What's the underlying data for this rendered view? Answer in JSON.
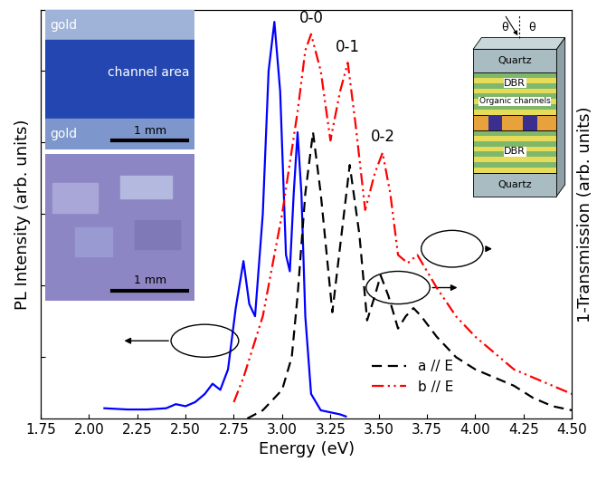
{
  "chart_data": {
    "type": "line",
    "xlabel": "Energy (eV)",
    "ylabel": "PL Intensity (arb. units)",
    "y2label": "1-Transmission (arb. units)",
    "xlim": [
      1.75,
      4.5
    ],
    "xticks": [
      1.75,
      {
        "value": 2.0,
        "label": "2.00"
      },
      2.25,
      {
        "value": 2.5,
        "label": "2.50"
      },
      2.75,
      {
        "value": 3.0,
        "label": "3.00"
      },
      3.25,
      {
        "value": 3.5,
        "label": "3.50"
      },
      3.75,
      {
        "value": 4.0,
        "label": "4.00"
      },
      4.25,
      {
        "value": 4.5,
        "label": "4.50"
      }
    ],
    "ylim": [
      0,
      1
    ],
    "yticks": [
      0.15,
      0.325,
      0.5,
      0.675,
      0.85
    ],
    "y2lim": [
      0,
      1
    ],
    "y2ticks": [],
    "tick_labels": "x",
    "legend": "lower right",
    "series": [
      {
        "color": "#0000ff",
        "line_style": "solid",
        "x": [
          2.08,
          2.2,
          2.3,
          2.4,
          2.45,
          2.5,
          2.55,
          2.6,
          2.64,
          2.68,
          2.72,
          2.76,
          2.8,
          2.83,
          2.86,
          2.9,
          2.93,
          2.96,
          2.99,
          3.02,
          3.04,
          3.06,
          3.08,
          3.1,
          3.12,
          3.15,
          3.2,
          3.3,
          3.33
        ],
        "values": [
          0.025,
          0.022,
          0.022,
          0.025,
          0.035,
          0.03,
          0.04,
          0.06,
          0.085,
          0.07,
          0.12,
          0.27,
          0.385,
          0.28,
          0.25,
          0.5,
          0.85,
          0.97,
          0.8,
          0.4,
          0.36,
          0.55,
          0.7,
          0.55,
          0.25,
          0.06,
          0.02,
          0.01,
          0.005
        ]
      },
      {
        "name": "a // E",
        "color": "#000000",
        "line_style": "dashed",
        "axis": "y2",
        "x": [
          2.82,
          2.9,
          3.0,
          3.05,
          3.08,
          3.12,
          3.16,
          3.2,
          3.26,
          3.3,
          3.35,
          3.4,
          3.44,
          3.48,
          3.51,
          3.55,
          3.6,
          3.64,
          3.68,
          3.72,
          3.8,
          3.9,
          4.0,
          4.1,
          4.2,
          4.3,
          4.4,
          4.5
        ],
        "values": [
          0.0,
          0.02,
          0.07,
          0.15,
          0.3,
          0.55,
          0.7,
          0.55,
          0.26,
          0.42,
          0.62,
          0.45,
          0.24,
          0.3,
          0.35,
          0.3,
          0.22,
          0.25,
          0.27,
          0.25,
          0.2,
          0.15,
          0.12,
          0.1,
          0.08,
          0.05,
          0.03,
          0.02
        ]
      },
      {
        "name": "b // E",
        "color": "#ff0000",
        "line_style": "dashdotdot",
        "axis": "y2",
        "x": [
          2.75,
          2.8,
          2.9,
          3.0,
          3.08,
          3.12,
          3.15,
          3.2,
          3.25,
          3.3,
          3.34,
          3.38,
          3.43,
          3.48,
          3.52,
          3.56,
          3.6,
          3.65,
          3.7,
          3.75,
          3.8,
          3.9,
          4.0,
          4.1,
          4.2,
          4.3,
          4.4,
          4.5
        ],
        "values": [
          0.04,
          0.1,
          0.25,
          0.5,
          0.75,
          0.9,
          0.94,
          0.85,
          0.68,
          0.8,
          0.87,
          0.72,
          0.51,
          0.6,
          0.65,
          0.55,
          0.4,
          0.38,
          0.4,
          0.36,
          0.32,
          0.25,
          0.2,
          0.16,
          0.12,
          0.1,
          0.08,
          0.06
        ]
      }
    ],
    "annotations": [
      {
        "text": "0-0",
        "x": 3.15,
        "y": 0.94
      },
      {
        "text": "0-1",
        "x": 3.34,
        "y": 0.87
      },
      {
        "text": "0-2",
        "x": 3.52,
        "y": 0.65
      }
    ]
  },
  "insets": {
    "photo_top": {
      "labels": [
        "gold",
        "channel area",
        "gold"
      ],
      "scale": "1 mm"
    },
    "photo_bottom": {
      "scale": "1 mm"
    },
    "schematic": {
      "layers": [
        "Quartz",
        "DBR",
        "DBR",
        "Quartz"
      ],
      "channels": "Organic channels",
      "angle": "θ"
    }
  }
}
